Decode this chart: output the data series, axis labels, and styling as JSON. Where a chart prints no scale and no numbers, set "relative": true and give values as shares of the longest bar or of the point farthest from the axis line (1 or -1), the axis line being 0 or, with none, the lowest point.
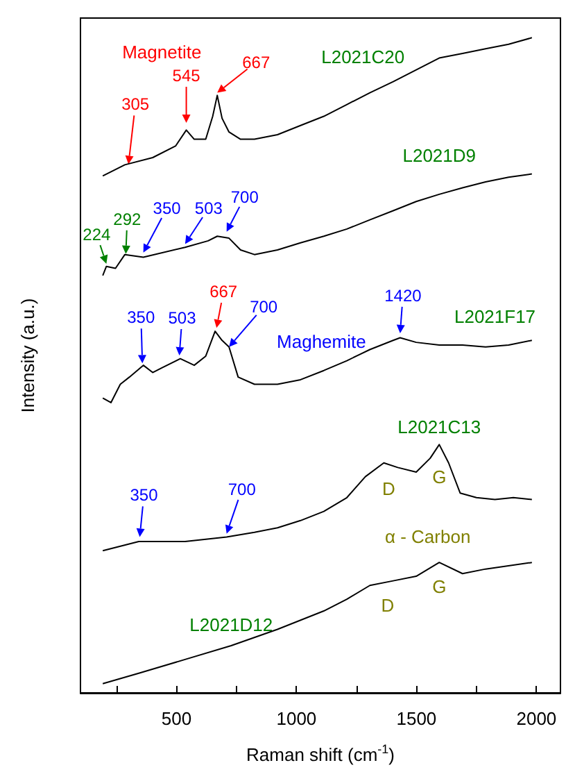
{
  "chart_data": {
    "type": "line",
    "relative": true,
    "xlabel": "Raman shift (cm$^{-1}$)",
    "ylabel": "Intensity (a.u.)",
    "xlim": [
      100,
      2100
    ],
    "xticks": [
      {
        "value": 250,
        "label": null
      },
      500,
      {
        "value": 750,
        "label": null
      },
      1000,
      {
        "value": 1250,
        "label": null
      },
      1500,
      {
        "value": 1750,
        "label": null
      },
      2000
    ],
    "marker": "none",
    "line_style": "solid",
    "series": [
      {
        "name": "L2021C20",
        "color": "#000000",
        "x": [
          193,
          285,
          401,
          497,
          541,
          574,
          622,
          651,
          670,
          690,
          719,
          767,
          825,
          921,
          1017,
          1114,
          1210,
          1306,
          1403,
          1499,
          1595,
          1692,
          1788,
          1884,
          1981
        ],
        "values": [
          0.789,
          0.806,
          0.817,
          0.835,
          0.859,
          0.845,
          0.845,
          0.88,
          0.912,
          0.877,
          0.856,
          0.845,
          0.845,
          0.852,
          0.866,
          0.88,
          0.898,
          0.916,
          0.933,
          0.951,
          0.969,
          0.976,
          0.983,
          0.99,
          1
        ]
      },
      {
        "name": "L2021D9",
        "color": "#000000",
        "x": [
          193,
          208,
          246,
          285,
          362,
          536,
          632,
          670,
          719,
          767,
          825,
          921,
          1017,
          1114,
          1210,
          1306,
          1403,
          1499,
          1595,
          1692,
          1788,
          1884,
          1981
        ],
        "values": [
          0.637,
          0.651,
          0.648,
          0.669,
          0.665,
          0.68,
          0.69,
          0.697,
          0.694,
          0.676,
          0.669,
          0.676,
          0.687,
          0.697,
          0.708,
          0.722,
          0.736,
          0.75,
          0.761,
          0.771,
          0.78,
          0.787,
          0.792
        ]
      },
      {
        "name": "L2021F17",
        "color": "#000000",
        "x": [
          193,
          227,
          266,
          304,
          362,
          401,
          439,
          516,
          574,
          622,
          661,
          690,
          719,
          757,
          825,
          921,
          1017,
          1114,
          1210,
          1306,
          1403,
          1432,
          1499,
          1595,
          1692,
          1788,
          1884,
          1981
        ],
        "values": [
          0.45,
          0.443,
          0.471,
          0.482,
          0.5,
          0.489,
          0.496,
          0.51,
          0.5,
          0.514,
          0.552,
          0.538,
          0.528,
          0.482,
          0.471,
          0.471,
          0.478,
          0.492,
          0.507,
          0.524,
          0.538,
          0.542,
          0.535,
          0.531,
          0.531,
          0.528,
          0.531,
          0.538
        ]
      },
      {
        "name": "L2021C13",
        "color": "#000000",
        "x": [
          193,
          343,
          536,
          709,
          825,
          921,
          1017,
          1114,
          1210,
          1287,
          1364,
          1422,
          1499,
          1557,
          1595,
          1634,
          1682,
          1750,
          1827,
          1904,
          1981
        ],
        "values": [
          0.217,
          0.231,
          0.231,
          0.238,
          0.245,
          0.252,
          0.263,
          0.277,
          0.298,
          0.33,
          0.351,
          0.344,
          0.337,
          0.358,
          0.379,
          0.351,
          0.305,
          0.298,
          0.295,
          0.298,
          0.295
        ]
      },
      {
        "name": "L2021D12",
        "color": "#000000",
        "x": [
          193,
          343,
          536,
          728,
          921,
          1114,
          1210,
          1306,
          1403,
          1499,
          1595,
          1692,
          1788,
          1981
        ],
        "values": [
          0.014,
          0.03,
          0.051,
          0.072,
          0.097,
          0.125,
          0.143,
          0.164,
          0.171,
          0.178,
          0.199,
          0.182,
          0.189,
          0.199
        ]
      }
    ],
    "annotations": [
      "Magnetite",
      {
        "text": "305",
        "x": 300,
        "y": 0.807
      },
      {
        "text": "545",
        "x": 541,
        "y": 0.87
      },
      {
        "text": "667",
        "x": 670,
        "y": 0.916
      },
      {
        "text": "224",
        "x": 208,
        "y": 0.655
      },
      {
        "text": "292",
        "x": 289,
        "y": 0.67
      },
      {
        "text": "350",
        "x": 362,
        "y": 0.672
      },
      {
        "text": "503",
        "x": 536,
        "y": 0.685
      },
      {
        "text": "700",
        "x": 709,
        "y": 0.704
      },
      {
        "text": "350",
        "x": 358,
        "y": 0.503
      },
      {
        "text": "503",
        "x": 512,
        "y": 0.515
      },
      {
        "text": "667",
        "x": 667,
        "y": 0.557
      },
      {
        "text": "700",
        "x": 719,
        "y": 0.528
      },
      "Maghemite",
      {
        "text": "1420",
        "x": 1432,
        "y": 0.549
      },
      {
        "text": "350",
        "x": 347,
        "y": 0.238
      },
      {
        "text": "700",
        "x": 709,
        "y": 0.243
      },
      "D",
      "G",
      "α - Carbon",
      "D",
      "G"
    ]
  }
}
